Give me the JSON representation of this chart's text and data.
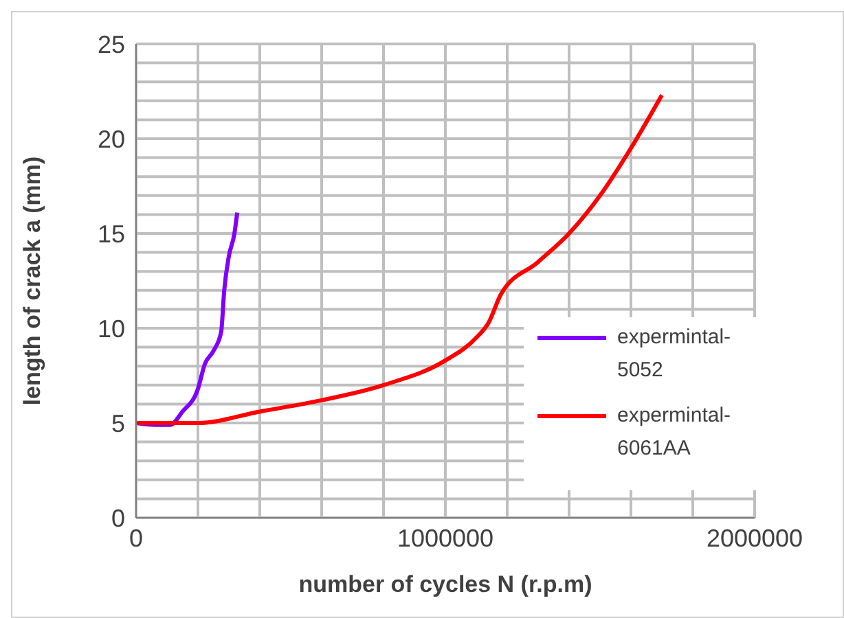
{
  "chart_data": {
    "type": "line",
    "xlabel": "number of cycles N (r.p.m)",
    "ylabel": "length of crack  a  (mm)",
    "series": [
      {
        "name": "expermintal-5052",
        "color": "#8000ff",
        "x": [
          0,
          60000,
          110000,
          150000,
          200000,
          222000,
          250000,
          275000,
          285000,
          300000,
          318000,
          327000
        ],
        "values": [
          5,
          4.9,
          4.9,
          5.6,
          6.8,
          8.1,
          8.8,
          9.8,
          12,
          13.8,
          15,
          16.1
        ]
      },
      {
        "name": "expermintal-6061AA",
        "color": "#ff0000",
        "x": [
          0,
          200000,
          400000,
          600000,
          800000,
          1000000,
          1100000,
          1140000,
          1180000,
          1300000,
          1400000,
          1500000,
          1600000,
          1700000
        ],
        "values": [
          5,
          5,
          5.6,
          6.2,
          7,
          8.3,
          9.5,
          10.3,
          11.8,
          13.5,
          15,
          17,
          19.5,
          22.3
        ]
      }
    ],
    "xlim": [
      0,
      2000000
    ],
    "xticks": [
      0,
      {
        "value": 200000,
        "label": null
      },
      {
        "value": 400000,
        "label": null
      },
      {
        "value": 600000,
        "label": null
      },
      {
        "value": 800000,
        "label": null
      },
      1000000,
      {
        "value": 1200000,
        "label": null
      },
      {
        "value": 1400000,
        "label": null
      },
      {
        "value": 1600000,
        "label": null
      },
      {
        "value": 1800000,
        "label": null
      },
      2000000
    ],
    "ylim": [
      0,
      25
    ],
    "yticks": [
      0,
      {
        "value": 1,
        "label": null
      },
      {
        "value": 2,
        "label": null
      },
      {
        "value": 3,
        "label": null
      },
      {
        "value": 4,
        "label": null
      },
      5,
      {
        "value": 6,
        "label": null
      },
      {
        "value": 7,
        "label": null
      },
      {
        "value": 8,
        "label": null
      },
      {
        "value": 9,
        "label": null
      },
      10,
      {
        "value": 11,
        "label": null
      },
      {
        "value": 12,
        "label": null
      },
      {
        "value": 13,
        "label": null
      },
      {
        "value": 14,
        "label": null
      },
      15,
      {
        "value": 16,
        "label": null
      },
      {
        "value": 17,
        "label": null
      },
      {
        "value": 18,
        "label": null
      },
      {
        "value": 19,
        "label": null
      },
      20,
      {
        "value": 21,
        "label": null
      },
      {
        "value": 22,
        "label": null
      },
      {
        "value": 23,
        "label": null
      },
      {
        "value": 24,
        "label": null
      },
      25
    ],
    "grid": true,
    "legend": "right",
    "marker": "none",
    "line_style": "solid"
  }
}
